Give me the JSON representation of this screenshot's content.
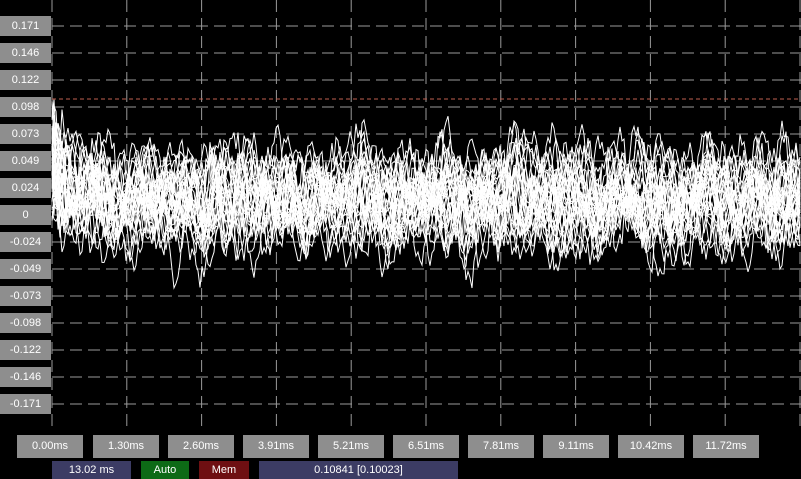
{
  "chart_data": {
    "type": "line",
    "title": "",
    "xlabel": "",
    "ylabel": "",
    "y_ticks": [
      "0.171",
      "0.146",
      "0.122",
      "0.098",
      "0.073",
      "0.049",
      "0.024",
      "0",
      "-0.024",
      "-0.049",
      "-0.073",
      "-0.098",
      "-0.122",
      "-0.146",
      "-0.171"
    ],
    "y_tick_values": [
      0.171,
      0.146,
      0.122,
      0.098,
      0.073,
      0.049,
      0.024,
      0,
      -0.024,
      -0.049,
      -0.073,
      -0.098,
      -0.122,
      -0.146,
      -0.171
    ],
    "x_ticks": [
      "0.00ms",
      "1.30ms",
      "2.60ms",
      "3.91ms",
      "5.21ms",
      "6.51ms",
      "7.81ms",
      "9.11ms",
      "10.42ms",
      "11.72ms"
    ],
    "xlim": [
      0,
      13.02
    ],
    "ylim": [
      -0.183,
      0.183
    ],
    "trigger_level": 0.098,
    "grid": true,
    "series_description_count": 30,
    "colors": {
      "background": "#000000",
      "grid": "#9a9a9a",
      "trace": "#ffffff",
      "trigger_line": "#c06050"
    }
  },
  "status_bar": {
    "timebase": "13.02 ms",
    "auto": "Auto",
    "mem": "Mem",
    "readout": "0.10841 [0.10023]"
  }
}
